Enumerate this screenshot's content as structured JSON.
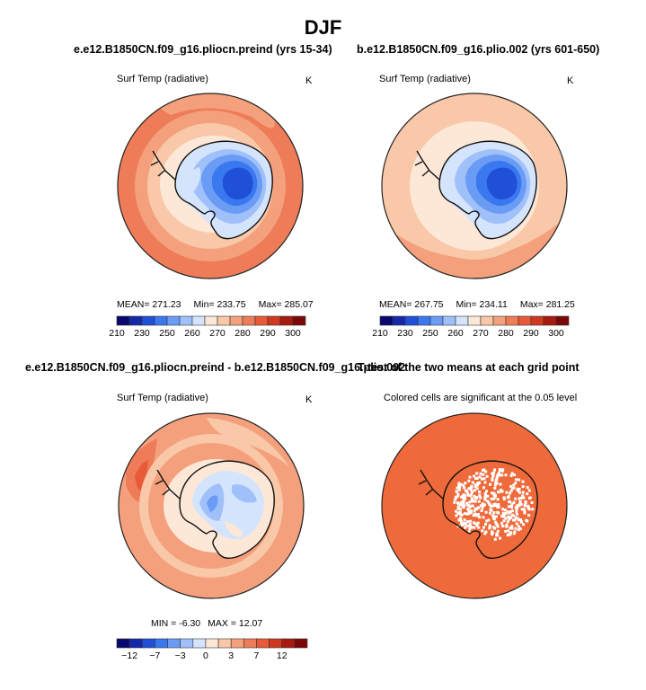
{
  "figure": {
    "title": "DJF"
  },
  "panels": {
    "top_left": {
      "title": "e.e12.B1850CN.f09_g16.pliocn.preind (yrs 15-34)",
      "variable": "Surf Temp (radiative)",
      "units": "K",
      "mean_label": "MEAN=",
      "mean": "271.23",
      "min_label": "Min=",
      "min": "233.75",
      "max_label": "Max=",
      "max": "285.07"
    },
    "top_right": {
      "title": "b.e12.B1850CN.f09_g16.plio.002 (yrs 601-650)",
      "variable": "Surf Temp (radiative)",
      "units": "K",
      "mean_label": "MEAN=",
      "mean": "267.75",
      "min_label": "Min=",
      "min": "234.11",
      "max_label": "Max=",
      "max": "281.25"
    },
    "bottom_left": {
      "title": "e.e12.B1850CN.f09_g16.pliocn.preind - b.e12.B1850CN.f09_g16.plio.002",
      "variable": "Surf Temp (radiative)",
      "units": "K",
      "min_label": "MIN =",
      "min": "-6.30",
      "max_label": "MAX =",
      "max": "12.07"
    },
    "bottom_right": {
      "title": "T-test of the two means at each grid point",
      "subtitle": "Colored cells are significant at the 0.05 level"
    }
  },
  "colors": {
    "abs_scale": [
      "#08086e",
      "#1428a8",
      "#2050d8",
      "#3a78f0",
      "#6a9cf6",
      "#a0c0fa",
      "#d4e4fc",
      "#fde8d8",
      "#f9c8a8",
      "#f4a07c",
      "#ef7c58",
      "#e85a38",
      "#d03820",
      "#a81a10",
      "#7a0808"
    ],
    "diff_scale": [
      "#08086e",
      "#1428a8",
      "#2050d8",
      "#3a78f0",
      "#6a9cf6",
      "#a0c0fa",
      "#d4e4fc",
      "#fde8d8",
      "#f9c8a8",
      "#f4a07c",
      "#ef7c58",
      "#e85a38",
      "#d03820",
      "#a81a10",
      "#7a0808"
    ],
    "significant": "#ef6a3a",
    "coastline": "#111111"
  },
  "chart_data": [
    {
      "type": "heatmap",
      "projection": "south-polar-stereographic",
      "title": "e.e12.B1850CN.f09_g16.pliocn.preind (yrs 15-34)",
      "variable": "Surf Temp (radiative)",
      "units": "K",
      "mean": 271.23,
      "min": 233.75,
      "max": 285.07,
      "colorbar_ticks": [
        210,
        230,
        250,
        260,
        270,
        280,
        290,
        300
      ],
      "contour_levels": [
        210,
        220,
        230,
        240,
        250,
        255,
        260,
        265,
        270,
        275,
        280,
        285,
        290,
        295,
        300
      ]
    },
    {
      "type": "heatmap",
      "projection": "south-polar-stereographic",
      "title": "b.e12.B1850CN.f09_g16.plio.002 (yrs 601-650)",
      "variable": "Surf Temp (radiative)",
      "units": "K",
      "mean": 267.75,
      "min": 234.11,
      "max": 281.25,
      "colorbar_ticks": [
        210,
        230,
        250,
        260,
        270,
        280,
        290,
        300
      ],
      "contour_levels": [
        210,
        220,
        230,
        240,
        250,
        255,
        260,
        265,
        270,
        275,
        280,
        285,
        290,
        295,
        300
      ]
    },
    {
      "type": "heatmap",
      "projection": "south-polar-stereographic",
      "title": "e.e12.B1850CN.f09_g16.pliocn.preind - b.e12.B1850CN.f09_g16.plio.002",
      "variable": "Surf Temp (radiative)",
      "units": "K",
      "min": -6.3,
      "max": 12.07,
      "colorbar_ticks": [
        -12,
        -7,
        -3,
        0,
        3,
        7,
        12
      ],
      "contour_levels": [
        -15,
        -12,
        -10,
        -7,
        -5,
        -3,
        -1,
        0,
        1,
        3,
        5,
        7,
        10,
        12,
        15
      ]
    },
    {
      "type": "heatmap",
      "projection": "south-polar-stereographic",
      "title": "T-test of the two means at each grid point",
      "subtitle": "Colored cells are significant at the 0.05 level",
      "significance_level": 0.05
    }
  ]
}
